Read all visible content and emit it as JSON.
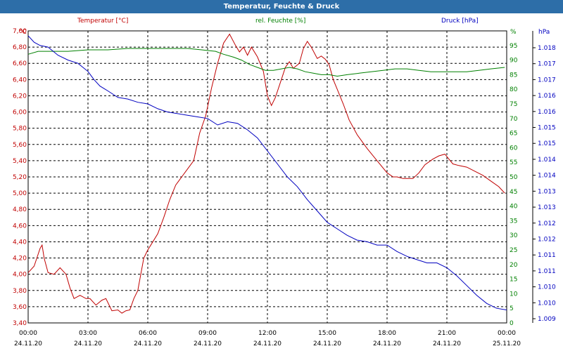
{
  "window": {
    "title": "Temperatur, Feuchte & Druck"
  },
  "chart_data": {
    "type": "line",
    "title": "Temperatur, Feuchte & Druck",
    "x_ticks": [
      {
        "time": "00:00",
        "date": "24.11.20"
      },
      {
        "time": "03:00",
        "date": "24.11.20"
      },
      {
        "time": "06:00",
        "date": "24.11.20"
      },
      {
        "time": "09:00",
        "date": "24.11.20"
      },
      {
        "time": "12:00",
        "date": "24.11.20"
      },
      {
        "time": "15:00",
        "date": "24.11.20"
      },
      {
        "time": "18:00",
        "date": "24.11.20"
      },
      {
        "time": "21:00",
        "date": "24.11.20"
      },
      {
        "time": "00:00",
        "date": "25.11.20"
      }
    ],
    "xlim_hours": [
      0,
      24
    ],
    "grid": true,
    "axes": {
      "temperature": {
        "label": "Temperatur [°C]",
        "unit": "°C",
        "color": "#c00000",
        "ylim": [
          3.4,
          7.0
        ],
        "ticks": [
          "3,40",
          "3,60",
          "3,80",
          "4,00",
          "4,20",
          "4,40",
          "4,60",
          "4,80",
          "5,00",
          "5,20",
          "5,40",
          "5,60",
          "5,80",
          "6,00",
          "6,20",
          "6,40",
          "6,60",
          "6,80",
          "7,00"
        ]
      },
      "humidity": {
        "label": "rel. Feuchte [%]",
        "unit": "%",
        "color": "#008000",
        "ylim": [
          0,
          100
        ],
        "ticks": [
          "0",
          "5",
          "10",
          "15",
          "20",
          "25",
          "30",
          "35",
          "40",
          "45",
          "50",
          "55",
          "60",
          "65",
          "70",
          "75",
          "80",
          "85",
          "90",
          "95"
        ]
      },
      "pressure": {
        "label": "Druck [hPa]",
        "unit": "hPa",
        "color": "#0000c0",
        "ylim": [
          1009.0,
          1018.0
        ],
        "ticks": [
          "1.009",
          "1.010",
          "1.010",
          "1.011",
          "1.011",
          "1.012",
          "1.012",
          "1.013",
          "1.013",
          "1.014",
          "1.014",
          "1.015",
          "1.015",
          "1.016",
          "1.016",
          "1.017",
          "1.017",
          "1.018"
        ]
      }
    },
    "series": [
      {
        "name": "Temperatur [°C]",
        "axis": "temperature",
        "x": [
          0,
          0.3,
          0.6,
          0.7,
          0.8,
          1.0,
          1.3,
          1.6,
          1.9,
          2.1,
          2.3,
          2.6,
          2.9,
          3.1,
          3.4,
          3.7,
          3.9,
          4.2,
          4.5,
          4.7,
          4.9,
          5.1,
          5.3,
          5.5,
          5.8,
          6.0,
          6.2,
          6.5,
          6.8,
          7.1,
          7.4,
          7.7,
          8.0,
          8.3,
          8.6,
          8.9,
          9.2,
          9.5,
          9.8,
          10.1,
          10.4,
          10.6,
          10.8,
          11.0,
          11.2,
          11.5,
          11.8,
          12.0,
          12.2,
          12.4,
          12.7,
          12.9,
          13.1,
          13.3,
          13.6,
          13.8,
          14.0,
          14.2,
          14.5,
          14.7,
          14.9,
          15.1,
          15.3,
          15.5,
          15.8,
          16.1,
          16.5,
          17.0,
          17.5,
          18.0,
          18.3,
          18.5,
          18.8,
          19.3,
          19.6,
          19.9,
          20.3,
          20.6,
          20.9,
          21.1,
          21.3,
          21.6,
          22.0,
          22.4,
          22.8,
          23.2,
          23.6,
          23.9
        ],
        "values": [
          4.02,
          4.1,
          4.32,
          4.36,
          4.2,
          4.02,
          4.0,
          4.08,
          4.0,
          3.83,
          3.7,
          3.74,
          3.7,
          3.7,
          3.62,
          3.68,
          3.7,
          3.55,
          3.56,
          3.52,
          3.55,
          3.56,
          3.7,
          3.8,
          4.2,
          4.3,
          4.38,
          4.5,
          4.7,
          4.92,
          5.1,
          5.2,
          5.3,
          5.4,
          5.74,
          5.95,
          6.3,
          6.6,
          6.85,
          6.96,
          6.82,
          6.74,
          6.8,
          6.7,
          6.8,
          6.68,
          6.5,
          6.2,
          6.08,
          6.18,
          6.4,
          6.55,
          6.62,
          6.54,
          6.6,
          6.78,
          6.87,
          6.8,
          6.66,
          6.69,
          6.65,
          6.58,
          6.4,
          6.28,
          6.1,
          5.9,
          5.72,
          5.55,
          5.4,
          5.25,
          5.2,
          5.2,
          5.18,
          5.18,
          5.25,
          5.35,
          5.42,
          5.46,
          5.48,
          5.42,
          5.36,
          5.34,
          5.32,
          5.27,
          5.22,
          5.15,
          5.08,
          5.0
        ]
      },
      {
        "name": "rel. Feuchte [%]",
        "axis": "humidity",
        "x": [
          0,
          0.5,
          1.0,
          2.0,
          3.0,
          4.0,
          5.0,
          6.0,
          7.0,
          8.0,
          8.7,
          9.4,
          9.8,
          10.3,
          10.7,
          11.1,
          11.5,
          11.9,
          12.3,
          12.7,
          13.1,
          13.5,
          13.9,
          14.3,
          14.7,
          15.1,
          15.5,
          16.0,
          16.6,
          17.2,
          17.8,
          18.4,
          19.0,
          19.6,
          20.2,
          20.8,
          21.4,
          22.0,
          22.6,
          23.2,
          23.9
        ],
        "values": [
          92,
          93,
          93,
          93,
          93.5,
          93.5,
          94,
          94,
          94,
          94,
          93.5,
          93,
          92,
          91,
          90,
          88.5,
          87.5,
          86.5,
          86.5,
          87,
          87.5,
          87,
          86,
          85.5,
          85,
          85,
          84.5,
          85,
          85.5,
          86,
          86.5,
          87,
          87,
          86.5,
          86,
          86,
          86,
          86,
          86.5,
          87,
          87.5
        ]
      },
      {
        "name": "Druck [hPa]",
        "axis": "pressure",
        "x": [
          0,
          0.3,
          0.6,
          1.0,
          1.5,
          2.0,
          2.5,
          3.0,
          3.3,
          3.6,
          4.0,
          4.5,
          5.0,
          5.5,
          6.0,
          6.5,
          7.0,
          7.5,
          8.0,
          8.5,
          9.0,
          9.5,
          10.0,
          10.5,
          11.0,
          11.5,
          12.0,
          12.5,
          13.0,
          13.5,
          14.0,
          14.5,
          15.0,
          15.5,
          16.0,
          16.5,
          17.0,
          17.5,
          18.0,
          18.5,
          19.0,
          19.5,
          20.0,
          20.5,
          21.0,
          21.5,
          22.0,
          22.5,
          23.0,
          23.5,
          24.0
        ],
        "values": [
          1017.85,
          1017.65,
          1017.55,
          1017.5,
          1017.25,
          1017.1,
          1017.0,
          1016.75,
          1016.5,
          1016.3,
          1016.15,
          1015.95,
          1015.9,
          1015.8,
          1015.75,
          1015.6,
          1015.5,
          1015.45,
          1015.4,
          1015.35,
          1015.3,
          1015.1,
          1015.2,
          1015.15,
          1014.95,
          1014.7,
          1014.3,
          1013.9,
          1013.5,
          1013.2,
          1012.8,
          1012.45,
          1012.1,
          1011.9,
          1011.7,
          1011.55,
          1011.5,
          1011.4,
          1011.4,
          1011.2,
          1011.05,
          1010.95,
          1010.85,
          1010.85,
          1010.7,
          1010.45,
          1010.15,
          1009.85,
          1009.6,
          1009.45,
          1009.4
        ]
      }
    ]
  }
}
